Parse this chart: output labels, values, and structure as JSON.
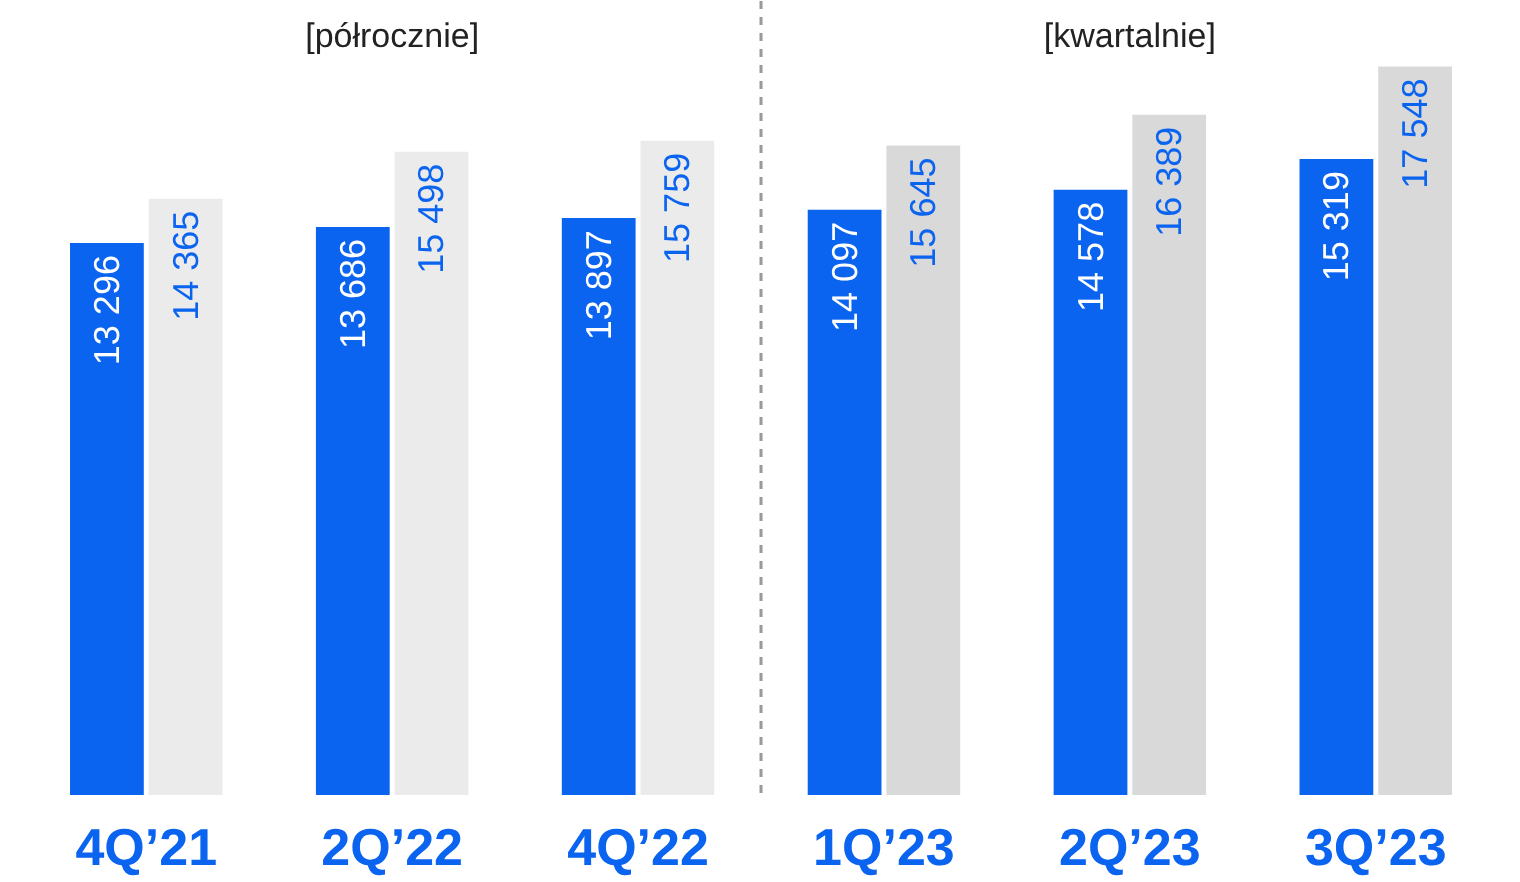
{
  "chart_data": {
    "type": "bar",
    "categories": [
      "4Q’21",
      "2Q’22",
      "4Q’22",
      "1Q’23",
      "2Q’23",
      "3Q’23"
    ],
    "series": [
      {
        "color": "#0a64f0",
        "values": [
          13296,
          13686,
          13897,
          14097,
          14578,
          15319
        ],
        "value_labels": [
          "13 296",
          "13 686",
          "13 897",
          "14 097",
          "14 578",
          "15 319"
        ]
      },
      {
        "colors": [
          "#ebebeb",
          "#ebebeb",
          "#ebebeb",
          "#d9d9d9",
          "#d9d9d9",
          "#d9d9d9"
        ],
        "values": [
          14365,
          15498,
          15759,
          15645,
          16389,
          17548
        ],
        "value_labels": [
          "14 365",
          "15 498",
          "15 759",
          "15 645",
          "16 389",
          "17 548"
        ]
      }
    ],
    "annotations": [
      "[półrocznie]",
      "[kwartalnie]"
    ],
    "grid": false
  }
}
